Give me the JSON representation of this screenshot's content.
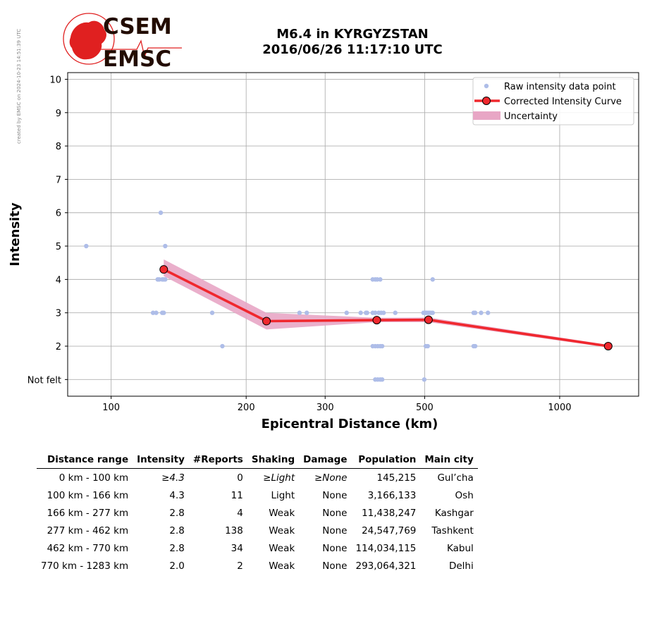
{
  "side_note": "created by EMSC on 2024-10-23 14:51:39 UTC",
  "logo": {
    "top": "CSEM",
    "bottom": "EMSC",
    "color": "#e02020"
  },
  "title_line1": "M6.4 in KYRGYZSTAN",
  "title_line2": "2016/06/26 11:17:10 UTC",
  "chart_data": {
    "type": "scatter",
    "xlabel": "Epicentral Distance (km)",
    "ylabel": "Intensity",
    "xscale": "log",
    "xlim": [
      80,
      1500
    ],
    "ylim": [
      0.5,
      10.2
    ],
    "xticks": [
      100,
      200,
      300,
      500,
      1000
    ],
    "xtick_labels": [
      "100",
      "200",
      "300",
      "500",
      "1000"
    ],
    "yticks": [
      1,
      2,
      3,
      4,
      5,
      6,
      7,
      8,
      9,
      10
    ],
    "ytick_labels": [
      "Not felt",
      "2",
      "3",
      "4",
      "5",
      "6",
      "7",
      "8",
      "9",
      "10"
    ],
    "grid": true,
    "legend_position": "top-right",
    "legend": [
      "Raw intensity data point",
      "Corrected Intensity Curve",
      "Uncertainty"
    ],
    "colors": {
      "raw": "#aebde8",
      "curve": "#f0282e",
      "uncertainty": "#e8a6c5",
      "marker_edge": "#000000"
    },
    "raw_points": [
      [
        88,
        5
      ],
      [
        129,
        6
      ],
      [
        132,
        5
      ],
      [
        127,
        4
      ],
      [
        128,
        4
      ],
      [
        130,
        4
      ],
      [
        131,
        4
      ],
      [
        132,
        4
      ],
      [
        124,
        3
      ],
      [
        126,
        3
      ],
      [
        130,
        3
      ],
      [
        131,
        3
      ],
      [
        168,
        3
      ],
      [
        177,
        2
      ],
      [
        263,
        3
      ],
      [
        273,
        3
      ],
      [
        335,
        3
      ],
      [
        360,
        3
      ],
      [
        370,
        3
      ],
      [
        372,
        3
      ],
      [
        383,
        3
      ],
      [
        388,
        3
      ],
      [
        395,
        3
      ],
      [
        400,
        3
      ],
      [
        405,
        3
      ],
      [
        430,
        3
      ],
      [
        383,
        4
      ],
      [
        388,
        4
      ],
      [
        392,
        4
      ],
      [
        398,
        4
      ],
      [
        383,
        2
      ],
      [
        388,
        2
      ],
      [
        393,
        2
      ],
      [
        398,
        2
      ],
      [
        402,
        2
      ],
      [
        388,
        1
      ],
      [
        393,
        1
      ],
      [
        398,
        1
      ],
      [
        402,
        1
      ],
      [
        499,
        1
      ],
      [
        497,
        3
      ],
      [
        502,
        3
      ],
      [
        506,
        3
      ],
      [
        511,
        3
      ],
      [
        516,
        3
      ],
      [
        521,
        3
      ],
      [
        503,
        2
      ],
      [
        508,
        2
      ],
      [
        521,
        4
      ],
      [
        643,
        3
      ],
      [
        648,
        3
      ],
      [
        668,
        3
      ],
      [
        692,
        3
      ],
      [
        643,
        2
      ],
      [
        648,
        2
      ]
    ],
    "curve": {
      "x": [
        131,
        222,
        391,
        510,
        1283
      ],
      "y": [
        4.3,
        2.75,
        2.78,
        2.79,
        2.0
      ],
      "upper": [
        4.6,
        3.0,
        2.85,
        2.86,
        2.04
      ],
      "lower": [
        4.1,
        2.5,
        2.72,
        2.72,
        1.96
      ]
    }
  },
  "table": {
    "headers": [
      "Distance range",
      "Intensity",
      "#Reports",
      "Shaking",
      "Damage",
      "Population",
      "Main city"
    ],
    "rows": [
      [
        "0 km -  100 km",
        "≥4.3",
        "0",
        "≥Light",
        "≥None",
        "145,215",
        "Gul’cha"
      ],
      [
        "100 km -  166 km",
        "4.3",
        "11",
        "Light",
        "None",
        "3,166,133",
        "Osh"
      ],
      [
        "166 km -  277 km",
        "2.8",
        "4",
        "Weak",
        "None",
        "11,438,247",
        "Kashgar"
      ],
      [
        "277 km -  462 km",
        "2.8",
        "138",
        "Weak",
        "None",
        "24,547,769",
        "Tashkent"
      ],
      [
        "462 km -  770 km",
        "2.8",
        "34",
        "Weak",
        "None",
        "114,034,115",
        "Kabul"
      ],
      [
        "770 km - 1283 km",
        "2.0",
        "2",
        "Weak",
        "None",
        "293,064,321",
        "Delhi"
      ]
    ]
  }
}
